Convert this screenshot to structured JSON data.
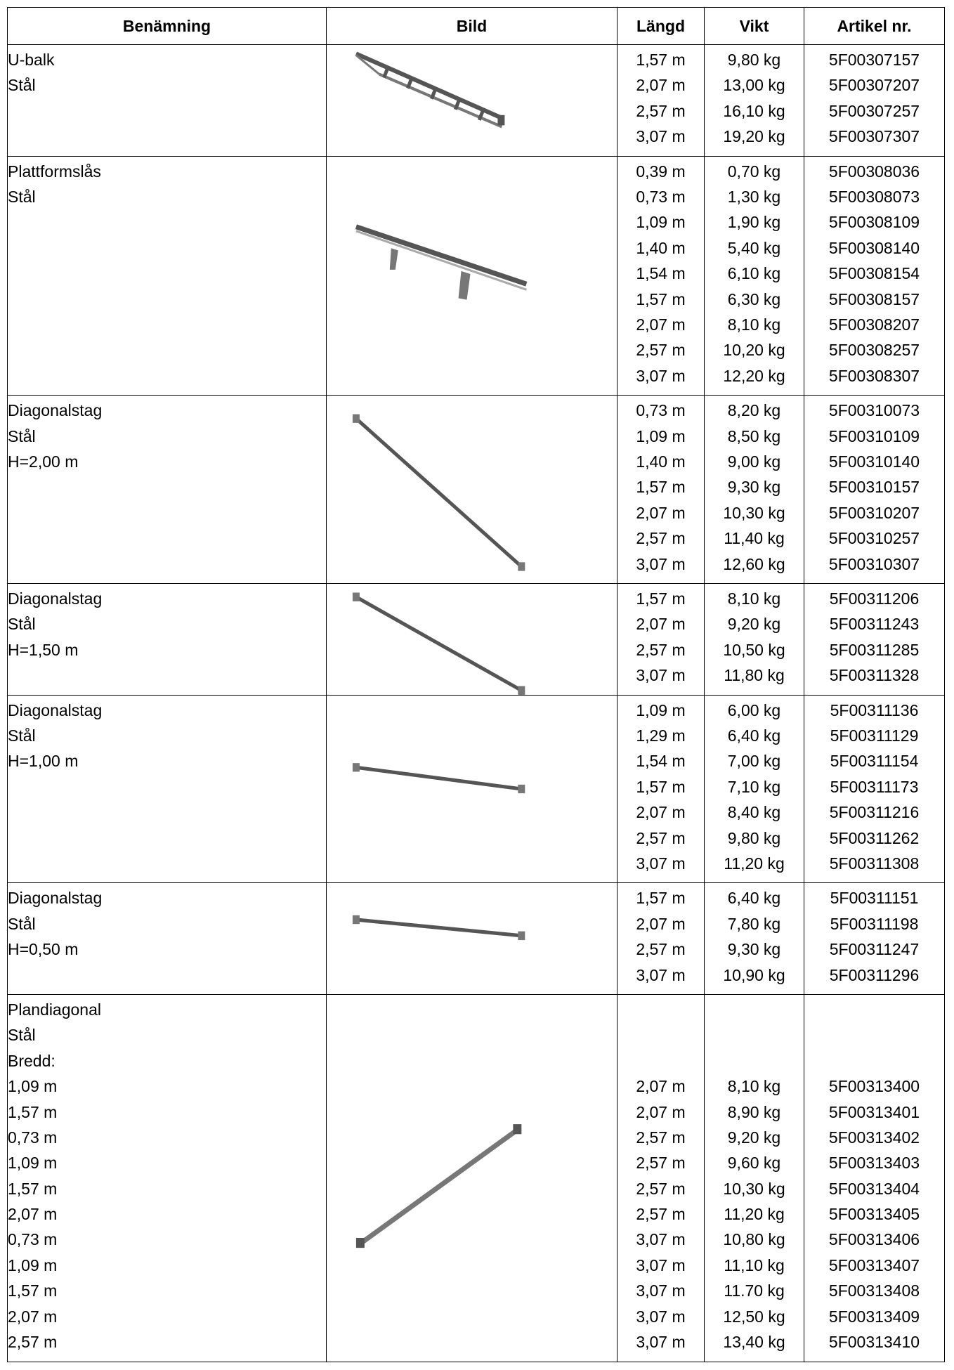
{
  "headers": {
    "name": "Benämning",
    "image": "Bild",
    "length": "Längd",
    "weight": "Vikt",
    "article": "Artikel nr."
  },
  "rows": [
    {
      "name": [
        "U-balk",
        "Stål"
      ],
      "icon": "u-beam-icon",
      "lengths": [
        "1,57 m",
        "2,07 m",
        "2,57 m",
        "3,07 m"
      ],
      "weights": [
        "9,80 kg",
        "13,00 kg",
        "16,10 kg",
        "19,20 kg"
      ],
      "articles": [
        "5F00307157",
        "5F00307207",
        "5F00307257",
        "5F00307307"
      ]
    },
    {
      "name": [
        "Plattformslås",
        "Stål"
      ],
      "icon": "platform-lock-icon",
      "lengths": [
        "0,39 m",
        "0,73 m",
        "1,09 m",
        "1,40 m",
        "1,54 m",
        "1,57 m",
        "2,07 m",
        "2,57 m",
        "3,07 m"
      ],
      "weights": [
        "0,70 kg",
        "1,30 kg",
        "1,90 kg",
        "5,40 kg",
        "6,10 kg",
        "6,30 kg",
        "8,10 kg",
        "10,20 kg",
        "12,20 kg"
      ],
      "articles": [
        "5F00308036",
        "5F00308073",
        "5F00308109",
        "5F00308140",
        "5F00308154",
        "5F00308157",
        "5F00308207",
        "5F00308257",
        "5F00308307"
      ]
    },
    {
      "name": [
        "Diagonalstag",
        "Stål",
        "H=2,00 m"
      ],
      "icon": "diagonal-brace-icon",
      "lengths": [
        "0,73 m",
        "1,09 m",
        "1,40 m",
        "1,57 m",
        "2,07 m",
        "2,57 m",
        "3,07 m"
      ],
      "weights": [
        "8,20 kg",
        "8,50 kg",
        "9,00 kg",
        "9,30 kg",
        "10,30 kg",
        "11,40 kg",
        "12,60 kg"
      ],
      "articles": [
        "5F00310073",
        "5F00310109",
        "5F00310140",
        "5F00310157",
        "5F00310207",
        "5F00310257",
        "5F00310307"
      ]
    },
    {
      "name": [
        "Diagonalstag",
        "Stål",
        "H=1,50 m"
      ],
      "icon": "diagonal-brace-icon",
      "lengths": [
        "1,57 m",
        "2,07 m",
        "2,57 m",
        "3,07 m"
      ],
      "weights": [
        "8,10 kg",
        "9,20 kg",
        "10,50 kg",
        "11,80 kg"
      ],
      "articles": [
        "5F00311206",
        "5F00311243",
        "5F00311285",
        "5F00311328"
      ]
    },
    {
      "name": [
        "Diagonalstag",
        "Stål",
        "H=1,00 m"
      ],
      "icon": "diagonal-brace-icon",
      "lengths": [
        "1,09 m",
        "1,29 m",
        "1,54 m",
        "1,57 m",
        "2,07 m",
        "2,57 m",
        "3,07 m"
      ],
      "weights": [
        "6,00 kg",
        "6,40 kg",
        "7,00 kg",
        "7,10 kg",
        "8,40 kg",
        "9,80 kg",
        "11,20 kg"
      ],
      "articles": [
        "5F00311136",
        "5F00311129",
        "5F00311154",
        "5F00311173",
        "5F00311216",
        "5F00311262",
        "5F00311308"
      ]
    },
    {
      "name": [
        "Diagonalstag",
        "Stål",
        "H=0,50 m"
      ],
      "icon": "diagonal-brace-icon",
      "lengths": [
        "1,57 m",
        "2,07 m",
        "2,57 m",
        "3,07 m"
      ],
      "weights": [
        "6,40 kg",
        "7,80 kg",
        "9,30 kg",
        "10,90 kg"
      ],
      "articles": [
        "5F00311151",
        "5F00311198",
        "5F00311247",
        "5F00311296"
      ]
    },
    {
      "name": [
        "Plandiagonal",
        "Stål",
        "Bredd:",
        "1,09 m",
        "1,57 m",
        "0,73 m",
        "1,09 m",
        "1,57 m",
        "2,07 m",
        "0,73 m",
        "1,09 m",
        "1,57 m",
        "2,07 m",
        "2,57 m"
      ],
      "icon": "plan-diagonal-icon",
      "lengths": [
        "",
        "",
        "",
        "2,07 m",
        "2,07 m",
        "2,57 m",
        "2,57 m",
        "2,57 m",
        "2,57 m",
        "3,07 m",
        "3,07 m",
        "3,07 m",
        "3,07 m",
        "3,07 m"
      ],
      "weights": [
        "",
        "",
        "",
        "8,10 kg",
        "8,90 kg",
        "9,20 kg",
        "9,60 kg",
        "10,30 kg",
        "11,20 kg",
        "10,80 kg",
        "11,10 kg",
        "11.70 kg",
        "12,50 kg",
        "13,40 kg"
      ],
      "articles": [
        "",
        "",
        "",
        "5F00313400",
        "5F00313401",
        "5F00313402",
        "5F00313403",
        "5F00313404",
        "5F00313405",
        "5F00313406",
        "5F00313407",
        "5F00313408",
        "5F00313409",
        "5F00313410"
      ]
    }
  ]
}
